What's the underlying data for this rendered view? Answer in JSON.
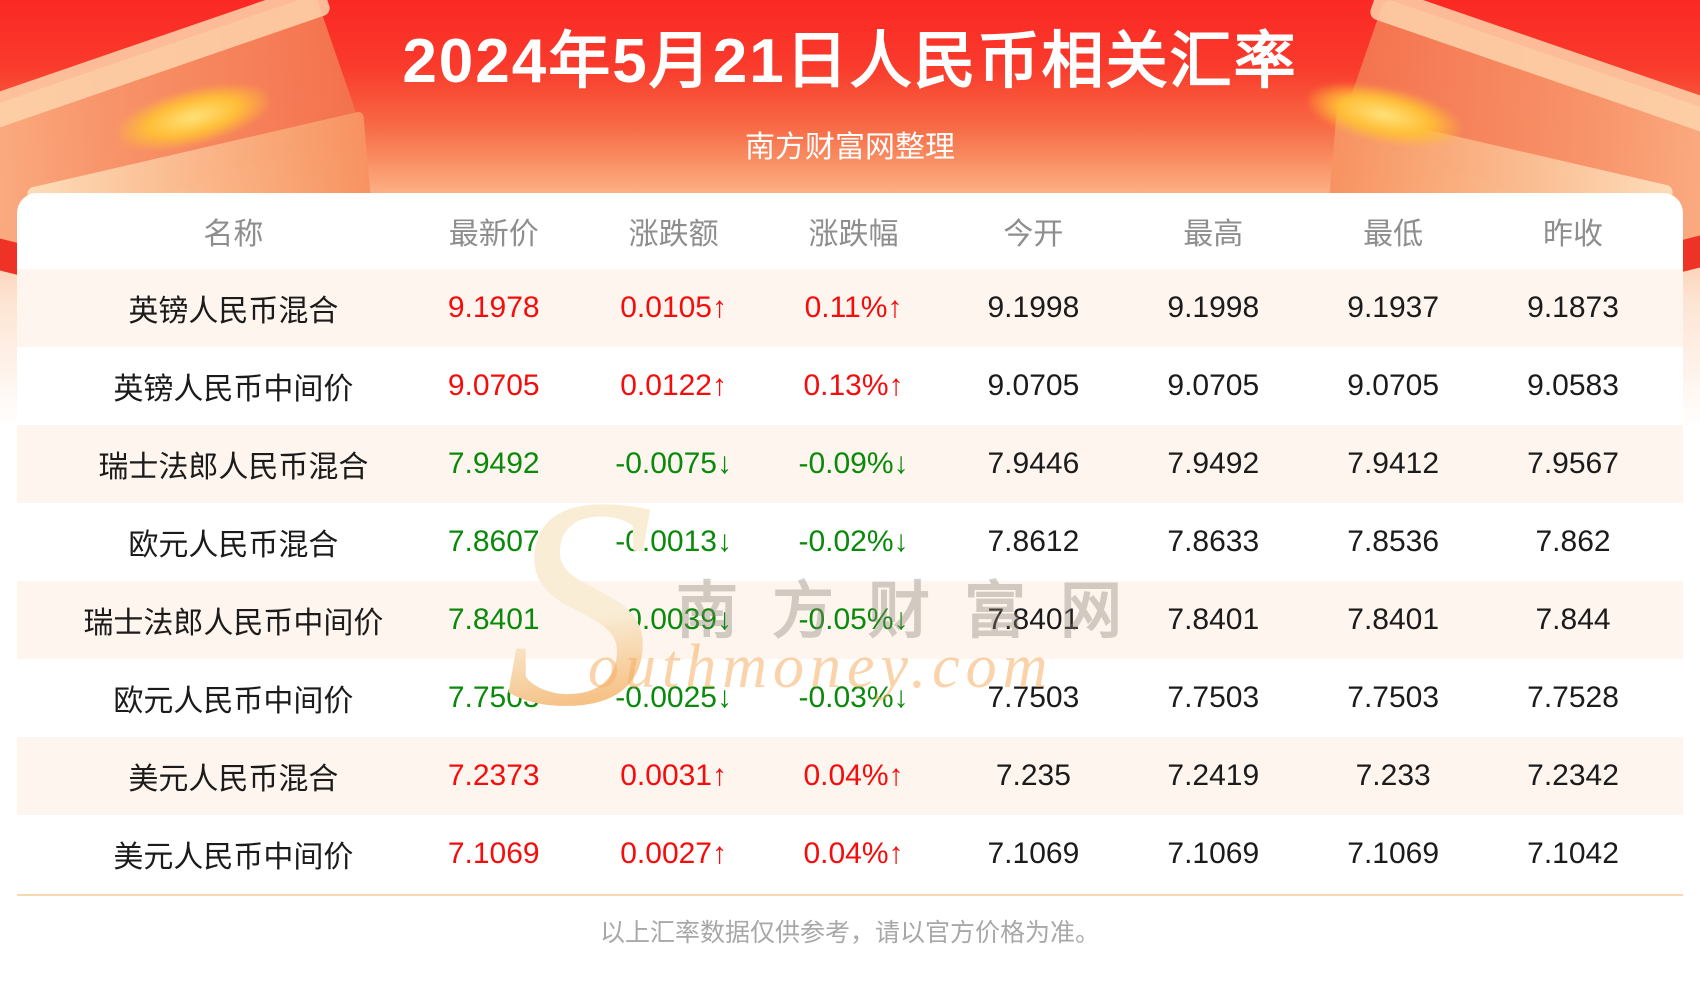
{
  "page": {
    "title": "2024年5月21日人民币相关汇率",
    "subtitle": "南方财富网整理",
    "footer_note": "以上汇率数据仅供参考，请以官方价格为准。"
  },
  "watermark": {
    "s": "S",
    "cn": "南方财富网",
    "en": "outhmoney.com"
  },
  "colors": {
    "up": "#f50d0d",
    "down": "#0a8a0a",
    "stripe": "#fdf5ee",
    "divider": "#f6d9b0",
    "header_text": "#8e8e8e",
    "footer_text": "#a8a8a8",
    "hero_top": "#fb2824",
    "hero_bottom": "#fbb084",
    "title_text": "#ffffff"
  },
  "table": {
    "columns": [
      "名称",
      "最新价",
      "涨跌额",
      "涨跌幅",
      "今开",
      "最高",
      "最低",
      "昨收"
    ],
    "rows": [
      {
        "name": "英镑人民币混合",
        "last": "9.1978",
        "change": "0.0105↑",
        "change_pct": "0.11%↑",
        "open": "9.1998",
        "high": "9.1998",
        "low": "9.1937",
        "prev_close": "9.1873",
        "direction": "up"
      },
      {
        "name": "英镑人民币中间价",
        "last": "9.0705",
        "change": "0.0122↑",
        "change_pct": "0.13%↑",
        "open": "9.0705",
        "high": "9.0705",
        "low": "9.0705",
        "prev_close": "9.0583",
        "direction": "up"
      },
      {
        "name": "瑞士法郎人民币混合",
        "last": "7.9492",
        "change": "-0.0075↓",
        "change_pct": "-0.09%↓",
        "open": "7.9446",
        "high": "7.9492",
        "low": "7.9412",
        "prev_close": "7.9567",
        "direction": "down"
      },
      {
        "name": "欧元人民币混合",
        "last": "7.8607",
        "change": "-0.0013↓",
        "change_pct": "-0.02%↓",
        "open": "7.8612",
        "high": "7.8633",
        "low": "7.8536",
        "prev_close": "7.862",
        "direction": "down"
      },
      {
        "name": "瑞士法郎人民币中间价",
        "last": "7.8401",
        "change": "-0.0039↓",
        "change_pct": "-0.05%↓",
        "open": "7.8401",
        "high": "7.8401",
        "low": "7.8401",
        "prev_close": "7.844",
        "direction": "down"
      },
      {
        "name": "欧元人民币中间价",
        "last": "7.7503",
        "change": "-0.0025↓",
        "change_pct": "-0.03%↓",
        "open": "7.7503",
        "high": "7.7503",
        "low": "7.7503",
        "prev_close": "7.7528",
        "direction": "down"
      },
      {
        "name": "美元人民币混合",
        "last": "7.2373",
        "change": "0.0031↑",
        "change_pct": "0.04%↑",
        "open": "7.235",
        "high": "7.2419",
        "low": "7.233",
        "prev_close": "7.2342",
        "direction": "up"
      },
      {
        "name": "美元人民币中间价",
        "last": "7.1069",
        "change": "0.0027↑",
        "change_pct": "0.04%↑",
        "open": "7.1069",
        "high": "7.1069",
        "low": "7.1069",
        "prev_close": "7.1042",
        "direction": "up"
      }
    ]
  }
}
